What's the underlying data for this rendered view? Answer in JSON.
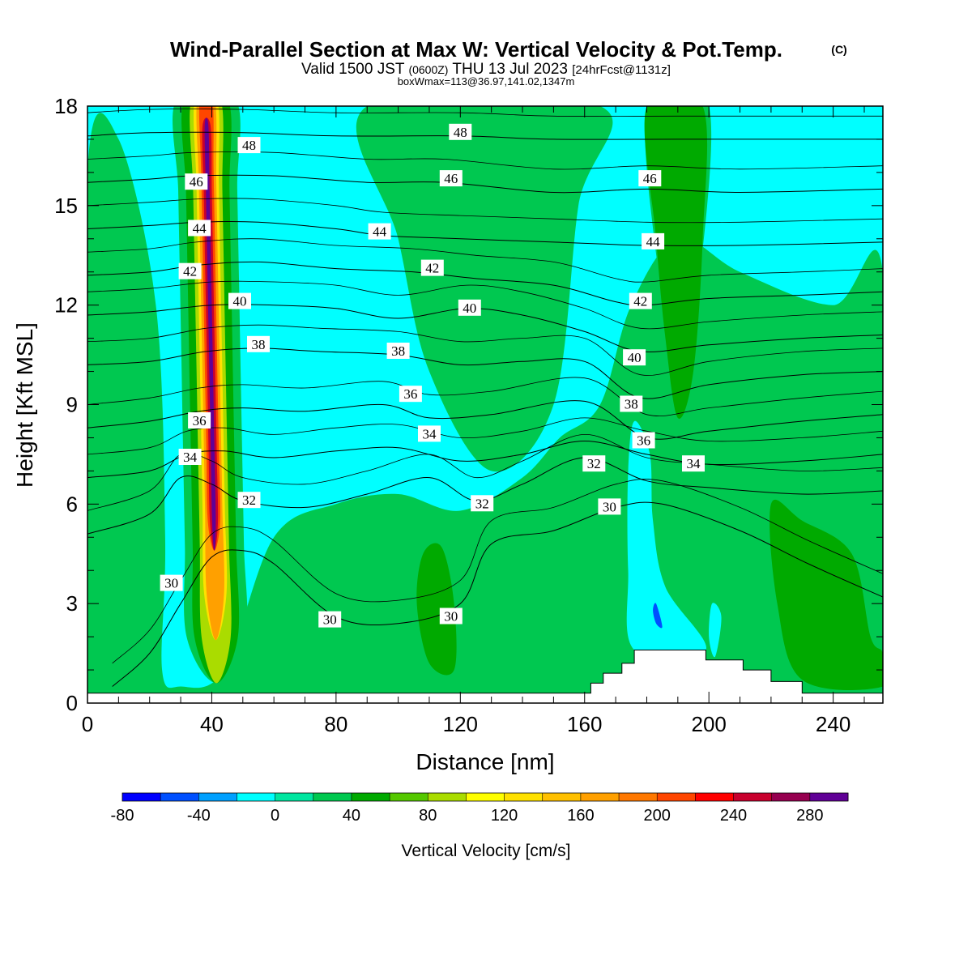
{
  "title": "Wind-Parallel Section at Max W: Vertical Velocity & Pot.Temp.",
  "title_badge": "(C)",
  "subtitle": {
    "prefix": "Valid 1500 JST",
    "utc": "(0600Z)",
    "date": "THU 13 Jul 2023",
    "forecast": "[24hrFcst@1131z]"
  },
  "info_line": "boxWmax=113@36.97,141.02,1347m",
  "chart_data": {
    "type": "heatmap",
    "xlabel": "Distance [nm]",
    "ylabel": "Height [Kft MSL]",
    "xlim": [
      0,
      256
    ],
    "ylim": [
      0,
      18
    ],
    "xticks": [
      "0",
      "40",
      "80",
      "120",
      "160",
      "200",
      "240"
    ],
    "xtick_values": [
      0,
      40,
      80,
      120,
      160,
      200,
      240
    ],
    "yticks": [
      "0",
      "3",
      "6",
      "9",
      "12",
      "15",
      "18"
    ],
    "ytick_values": [
      0,
      3,
      6,
      9,
      12,
      15,
      18
    ],
    "colorbar": {
      "label": "Vertical Velocity [cm/s]",
      "range": [
        -80,
        300
      ],
      "step": 20,
      "tick_labels": [
        "-80",
        "-40",
        "0",
        "40",
        "80",
        "120",
        "160",
        "200",
        "240",
        "280"
      ],
      "tick_values": [
        -80,
        -40,
        0,
        40,
        80,
        120,
        160,
        200,
        240,
        280
      ],
      "colors": [
        "#0000ff",
        "#0050ff",
        "#00a0ff",
        "#00ffff",
        "#00e6a0",
        "#00c850",
        "#00aa00",
        "#55c800",
        "#aadc00",
        "#ffff00",
        "#ffe100",
        "#ffc000",
        "#ffa000",
        "#ff7800",
        "#ff4600",
        "#ff0000",
        "#c8002d",
        "#960050",
        "#600096"
      ]
    },
    "isentropes": [
      {
        "theta": 30,
        "label": "30",
        "points": [
          [
            8,
            0.5
          ],
          [
            20,
            1.5
          ],
          [
            30,
            3.0
          ],
          [
            40,
            4.4
          ],
          [
            50,
            4.6
          ],
          [
            60,
            4.2
          ],
          [
            80,
            2.6
          ],
          [
            100,
            2.4
          ],
          [
            120,
            3.0
          ],
          [
            130,
            4.8
          ],
          [
            150,
            5.2
          ],
          [
            170,
            5.9
          ],
          [
            185,
            6.0
          ],
          [
            210,
            5.2
          ],
          [
            232,
            4.2
          ],
          [
            256,
            3.2
          ]
        ]
      },
      {
        "theta": 32,
        "label": "32",
        "points": [
          [
            0,
            5.1
          ],
          [
            20,
            5.7
          ],
          [
            30,
            6.8
          ],
          [
            40,
            6.6
          ],
          [
            50,
            6.1
          ],
          [
            70,
            5.9
          ],
          [
            90,
            6.3
          ],
          [
            110,
            6.8
          ],
          [
            125,
            6.1
          ],
          [
            140,
            6.6
          ],
          [
            160,
            7.4
          ],
          [
            180,
            6.7
          ],
          [
            200,
            6.5
          ],
          [
            230,
            6.3
          ],
          [
            256,
            6.4
          ]
        ]
      },
      {
        "theta": 34,
        "label": "34",
        "points": [
          [
            0,
            6.8
          ],
          [
            20,
            7.0
          ],
          [
            32,
            7.5
          ],
          [
            44,
            7.6
          ],
          [
            60,
            7.4
          ],
          [
            80,
            7.6
          ],
          [
            100,
            7.7
          ],
          [
            120,
            7.3
          ],
          [
            140,
            7.5
          ],
          [
            160,
            7.9
          ],
          [
            180,
            7.5
          ],
          [
            200,
            7.2
          ],
          [
            230,
            7.3
          ],
          [
            256,
            7.5
          ]
        ]
      },
      {
        "theta": 36,
        "label": "36",
        "points": [
          [
            0,
            8.3
          ],
          [
            20,
            8.5
          ],
          [
            36,
            8.8
          ],
          [
            50,
            8.9
          ],
          [
            70,
            8.8
          ],
          [
            95,
            9.0
          ],
          [
            110,
            8.6
          ],
          [
            130,
            8.7
          ],
          [
            160,
            9.1
          ],
          [
            180,
            8.0
          ],
          [
            200,
            8.2
          ],
          [
            230,
            8.5
          ],
          [
            256,
            8.7
          ]
        ]
      },
      {
        "theta": 38,
        "label": "38",
        "points": [
          [
            0,
            10.2
          ],
          [
            20,
            10.3
          ],
          [
            38,
            10.6
          ],
          [
            55,
            10.7
          ],
          [
            75,
            10.6
          ],
          [
            100,
            10.5
          ],
          [
            120,
            10.2
          ],
          [
            140,
            10.3
          ],
          [
            160,
            10.3
          ],
          [
            178,
            9.2
          ],
          [
            200,
            9.6
          ],
          [
            230,
            9.9
          ],
          [
            256,
            10.0
          ]
        ]
      },
      {
        "theta": 40,
        "label": "40",
        "points": [
          [
            0,
            11.7
          ],
          [
            20,
            11.8
          ],
          [
            40,
            12.0
          ],
          [
            60,
            12.0
          ],
          [
            80,
            11.9
          ],
          [
            100,
            11.6
          ],
          [
            122,
            11.9
          ],
          [
            140,
            11.7
          ],
          [
            160,
            11.2
          ],
          [
            178,
            10.6
          ],
          [
            200,
            10.8
          ],
          [
            230,
            11.0
          ],
          [
            256,
            11.1
          ]
        ]
      },
      {
        "theta": 42,
        "label": "42",
        "points": [
          [
            0,
            12.9
          ],
          [
            20,
            13.0
          ],
          [
            35,
            13.2
          ],
          [
            55,
            13.3
          ],
          [
            80,
            13.1
          ],
          [
            105,
            13.0
          ],
          [
            125,
            12.8
          ],
          [
            150,
            12.6
          ],
          [
            170,
            12.1
          ],
          [
            180,
            12.0
          ],
          [
            200,
            12.2
          ],
          [
            230,
            12.3
          ],
          [
            256,
            12.4
          ]
        ]
      },
      {
        "theta": 44,
        "label": "44",
        "points": [
          [
            0,
            14.3
          ],
          [
            20,
            14.4
          ],
          [
            36,
            14.5
          ],
          [
            55,
            14.5
          ],
          [
            80,
            14.3
          ],
          [
            95,
            14.1
          ],
          [
            120,
            14.0
          ],
          [
            150,
            13.9
          ],
          [
            180,
            13.8
          ],
          [
            210,
            13.8
          ],
          [
            256,
            13.9
          ]
        ]
      },
      {
        "theta": 46,
        "label": "46",
        "points": [
          [
            0,
            15.7
          ],
          [
            20,
            15.8
          ],
          [
            34,
            15.9
          ],
          [
            60,
            15.9
          ],
          [
            90,
            15.7
          ],
          [
            115,
            15.7
          ],
          [
            150,
            15.4
          ],
          [
            180,
            15.5
          ],
          [
            210,
            15.4
          ],
          [
            256,
            15.5
          ]
        ]
      },
      {
        "theta": 48,
        "label": "48",
        "points": [
          [
            0,
            17.1
          ],
          [
            20,
            17.2
          ],
          [
            50,
            17.2
          ],
          [
            80,
            17.1
          ],
          [
            120,
            17.1
          ],
          [
            150,
            17.0
          ],
          [
            190,
            17.0
          ],
          [
            230,
            17.0
          ],
          [
            256,
            17.0
          ]
        ]
      }
    ],
    "contour_labels": [
      {
        "text": "48",
        "x": 52,
        "y": 16.8
      },
      {
        "text": "48",
        "x": 120,
        "y": 17.2
      },
      {
        "text": "46",
        "x": 35,
        "y": 15.7
      },
      {
        "text": "46",
        "x": 117,
        "y": 15.8
      },
      {
        "text": "46",
        "x": 181,
        "y": 15.8
      },
      {
        "text": "44",
        "x": 36,
        "y": 14.3
      },
      {
        "text": "44",
        "x": 94,
        "y": 14.2
      },
      {
        "text": "44",
        "x": 182,
        "y": 13.9
      },
      {
        "text": "42",
        "x": 33,
        "y": 13.0
      },
      {
        "text": "42",
        "x": 111,
        "y": 13.1
      },
      {
        "text": "42",
        "x": 178,
        "y": 12.1
      },
      {
        "text": "40",
        "x": 49,
        "y": 12.1
      },
      {
        "text": "40",
        "x": 123,
        "y": 11.9
      },
      {
        "text": "40",
        "x": 176,
        "y": 10.4
      },
      {
        "text": "38",
        "x": 55,
        "y": 10.8
      },
      {
        "text": "38",
        "x": 100,
        "y": 10.6
      },
      {
        "text": "38",
        "x": 175,
        "y": 9.0
      },
      {
        "text": "36",
        "x": 36,
        "y": 8.5
      },
      {
        "text": "36",
        "x": 104,
        "y": 9.3
      },
      {
        "text": "36",
        "x": 179,
        "y": 7.9
      },
      {
        "text": "34",
        "x": 33,
        "y": 7.4
      },
      {
        "text": "34",
        "x": 110,
        "y": 8.1
      },
      {
        "text": "34",
        "x": 195,
        "y": 7.2
      },
      {
        "text": "32",
        "x": 52,
        "y": 6.1
      },
      {
        "text": "32",
        "x": 127,
        "y": 6.0
      },
      {
        "text": "32",
        "x": 163,
        "y": 7.2
      },
      {
        "text": "30",
        "x": 27,
        "y": 3.6
      },
      {
        "text": "30",
        "x": 78,
        "y": 2.5
      },
      {
        "text": "30",
        "x": 117,
        "y": 2.6
      },
      {
        "text": "30",
        "x": 168,
        "y": 5.9
      }
    ],
    "terrain": [
      [
        0,
        0.3
      ],
      [
        162,
        0.3
      ],
      [
        162,
        0.6
      ],
      [
        166,
        0.6
      ],
      [
        166,
        0.9
      ],
      [
        172,
        0.9
      ],
      [
        172,
        1.2
      ],
      [
        176,
        1.2
      ],
      [
        176,
        1.6
      ],
      [
        199,
        1.6
      ],
      [
        199,
        1.3
      ],
      [
        211,
        1.3
      ],
      [
        211,
        1.0
      ],
      [
        220,
        1.0
      ],
      [
        220,
        0.65
      ],
      [
        230,
        0.65
      ],
      [
        230,
        0.3
      ],
      [
        256,
        0.3
      ],
      [
        256,
        0
      ],
      [
        0,
        0
      ]
    ],
    "w_features": [
      {
        "w": 20,
        "shape": "band",
        "points": [
          [
            0,
            16
          ],
          [
            10,
            17
          ],
          [
            22,
            12
          ],
          [
            25,
            5
          ],
          [
            24,
            1
          ],
          [
            30,
            0.5
          ],
          [
            44,
            1
          ],
          [
            60,
            5
          ],
          [
            80,
            6
          ],
          [
            100,
            6.3
          ],
          [
            120,
            5.8
          ],
          [
            140,
            6.8
          ],
          [
            152,
            8
          ],
          [
            165,
            9
          ],
          [
            175,
            12
          ],
          [
            190,
            14
          ],
          [
            210,
            13
          ],
          [
            240,
            12
          ],
          [
            256,
            13
          ],
          [
            256,
            0.3
          ],
          [
            0,
            0.3
          ]
        ]
      },
      {
        "w": 20,
        "shape": "band",
        "points": [
          [
            90,
            18
          ],
          [
            100,
            14
          ],
          [
            110,
            10
          ],
          [
            130,
            7
          ],
          [
            150,
            9
          ],
          [
            158,
            15
          ],
          [
            165,
            18
          ]
        ]
      },
      {
        "w": 20,
        "shape": "band",
        "points": [
          [
            180,
            18
          ],
          [
            185,
            12
          ],
          [
            190,
            9
          ],
          [
            196,
            12
          ],
          [
            200,
            18
          ]
        ]
      },
      {
        "w": 40,
        "shape": "band",
        "points": [
          [
            180,
            18
          ],
          [
            183,
            14
          ],
          [
            186,
            11
          ],
          [
            190,
            8.6
          ],
          [
            195,
            10
          ],
          [
            198,
            14
          ],
          [
            198,
            18
          ]
        ]
      },
      {
        "w": 40,
        "shape": "band",
        "points": [
          [
            220,
            6
          ],
          [
            230,
            5.5
          ],
          [
            246,
            4.5
          ],
          [
            252,
            2
          ],
          [
            256,
            1.5
          ],
          [
            256,
            0.5
          ],
          [
            230,
            0.7
          ],
          [
            222,
            3
          ]
        ]
      },
      {
        "w": 40,
        "shape": "band",
        "points": [
          [
            108,
            4.5
          ],
          [
            114,
            4.7
          ],
          [
            118,
            3
          ],
          [
            118,
            1
          ],
          [
            110,
            1.2
          ],
          [
            106,
            3
          ]
        ]
      },
      {
        "w": -20,
        "shape": "blob",
        "points": [
          [
            62,
            14.5
          ],
          [
            67,
            12
          ],
          [
            67,
            9
          ],
          [
            64,
            8.5
          ],
          [
            61,
            10
          ],
          [
            60,
            13
          ]
        ]
      },
      {
        "w": -20,
        "shape": "blob",
        "points": [
          [
            176,
            8.5
          ],
          [
            181,
            7.5
          ],
          [
            182,
            5.5
          ],
          [
            186,
            3.5
          ],
          [
            199,
            1.6
          ],
          [
            176,
            1.6
          ],
          [
            174,
            4
          ],
          [
            174,
            7
          ]
        ]
      },
      {
        "w": -20,
        "shape": "blob",
        "points": [
          [
            220,
            18
          ],
          [
            248,
            18
          ],
          [
            246,
            16.7
          ],
          [
            240,
            16.8
          ],
          [
            232,
            17.2
          ],
          [
            226,
            17.0
          ]
        ]
      },
      {
        "w": -20,
        "shape": "blob",
        "points": [
          [
            201,
            3.0
          ],
          [
            204,
            2.6
          ],
          [
            202,
            1.4
          ],
          [
            200,
            2.0
          ]
        ]
      },
      {
        "w": -60,
        "shape": "blob",
        "points": [
          [
            183,
            3.0
          ],
          [
            185,
            2.3
          ],
          [
            183,
            2.4
          ],
          [
            182,
            2.8
          ]
        ]
      },
      {
        "w": -20,
        "shape": "blob",
        "points": [
          [
            45,
            6
          ],
          [
            47,
            4
          ],
          [
            46,
            1.5
          ],
          [
            44,
            3
          ]
        ]
      }
    ],
    "updraft_max": {
      "x": 40,
      "w": 300
    },
    "updraft_core": [
      {
        "w": 20,
        "halfwidth": 9.5
      },
      {
        "w": 40,
        "halfwidth": 7
      },
      {
        "w": 80,
        "halfwidth": 4.7
      },
      {
        "w": 120,
        "halfwidth": 3.6
      },
      {
        "w": 160,
        "halfwidth": 2.8
      },
      {
        "w": 200,
        "halfwidth": 2.0
      },
      {
        "w": 240,
        "halfwidth": 1.3
      },
      {
        "w": 280,
        "halfwidth": 0.6
      }
    ]
  }
}
